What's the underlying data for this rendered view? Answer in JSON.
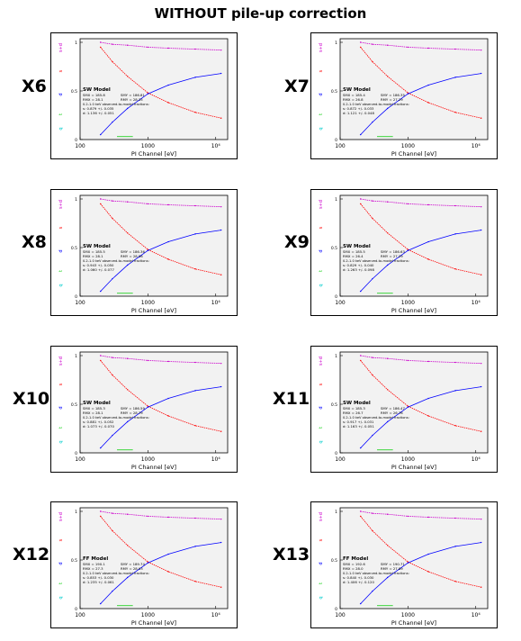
{
  "page_title": "WITHOUT pile-up correction",
  "colors": {
    "pattern_s_plus_d": "#cc00cc",
    "pattern_s": "#ff0000",
    "pattern_d": "#0000ff",
    "pattern_t": "#00cc00",
    "pattern_q": "#00cccc"
  },
  "legend_labels": {
    "s_plus_d": "s+d",
    "s": "s",
    "d": "d",
    "t": "t",
    "q": "q"
  },
  "x_axis": {
    "label": "PI Channel [eV]",
    "ticks": [
      "100",
      "1000",
      "10⁴"
    ]
  },
  "y_axis": {
    "ticks": [
      "0",
      "0.5",
      "1"
    ]
  },
  "chart_data": [
    {
      "panel": "X6",
      "type": "line",
      "model": "SW Model",
      "stats": {
        "smx": "SMX = 185.8",
        "smy": "SMY = 186.81",
        "rmx": "RMX = 28.1",
        "rmy": "RMY = 28.35"
      },
      "fit_note": "0.2-1.0 keV observed-to-model fractions:",
      "s_frac": "s: 0.879 +/- 0.035",
      "d_frac": "d: 1.136 +/- 0.051",
      "x": [
        200,
        300,
        500,
        1000,
        2000,
        5000,
        12000
      ],
      "series": [
        {
          "name": "s+d",
          "values": [
            1.0,
            0.98,
            0.97,
            0.95,
            0.94,
            0.93,
            0.92
          ]
        },
        {
          "name": "s",
          "values": [
            0.95,
            0.8,
            0.65,
            0.48,
            0.38,
            0.28,
            0.22
          ]
        },
        {
          "name": "d",
          "values": [
            0.05,
            0.18,
            0.32,
            0.47,
            0.56,
            0.64,
            0.68
          ]
        }
      ]
    },
    {
      "panel": "X7",
      "type": "line",
      "model": "SW Model",
      "stats": {
        "smx": "SMX = 185.4",
        "smy": "SMY = 186.35",
        "rmx": "RMX = 26.8",
        "rmy": "RMY = 27.29"
      },
      "fit_note": "0.2-1.0 keV observed-to-model fractions:",
      "s_frac": "s: 0.872 +/- 0.033",
      "d_frac": "d: 1.121 +/- 0.048",
      "x": [
        200,
        300,
        500,
        1000,
        2000,
        5000,
        12000
      ],
      "series": [
        {
          "name": "s+d",
          "values": [
            1.0,
            0.98,
            0.97,
            0.95,
            0.94,
            0.93,
            0.92
          ]
        },
        {
          "name": "s",
          "values": [
            0.95,
            0.8,
            0.65,
            0.48,
            0.38,
            0.28,
            0.22
          ]
        },
        {
          "name": "d",
          "values": [
            0.05,
            0.18,
            0.32,
            0.47,
            0.56,
            0.64,
            0.68
          ]
        }
      ]
    },
    {
      "panel": "X8",
      "type": "line",
      "model": "SW Model",
      "stats": {
        "smx": "SMX = 185.5",
        "smy": "SMY = 186.36",
        "rmx": "RMX = 28.1",
        "rmy": "RMY = 28.56"
      },
      "fit_note": "0.2-1.0 keV observed-to-model fractions:",
      "s_frac": "s: 0.943 +/- 0.050",
      "d_frac": "d: 1.060 +/- 0.077",
      "x": [
        200,
        300,
        500,
        1000,
        2000,
        5000,
        12000
      ],
      "series": [
        {
          "name": "s+d",
          "values": [
            1.0,
            0.98,
            0.97,
            0.95,
            0.94,
            0.93,
            0.92
          ]
        },
        {
          "name": "s",
          "values": [
            0.95,
            0.8,
            0.65,
            0.48,
            0.38,
            0.28,
            0.22
          ]
        },
        {
          "name": "d",
          "values": [
            0.05,
            0.18,
            0.32,
            0.47,
            0.56,
            0.64,
            0.68
          ]
        }
      ]
    },
    {
      "panel": "X9",
      "type": "line",
      "model": "SW Model",
      "stats": {
        "smx": "SMX = 185.5",
        "smy": "SMY = 186.63",
        "rmx": "RMX = 26.4",
        "rmy": "RMY = 27.29"
      },
      "fit_note": "0.2-1.0 keV observed-to-model fractions:",
      "s_frac": "s: 0.829 +/- 0.040",
      "d_frac": "d: 1.263 +/- 0.098",
      "x": [
        200,
        300,
        500,
        1000,
        2000,
        5000,
        12000
      ],
      "series": [
        {
          "name": "s+d",
          "values": [
            1.0,
            0.98,
            0.97,
            0.95,
            0.94,
            0.93,
            0.92
          ]
        },
        {
          "name": "s",
          "values": [
            0.95,
            0.8,
            0.65,
            0.48,
            0.38,
            0.28,
            0.22
          ]
        },
        {
          "name": "d",
          "values": [
            0.05,
            0.18,
            0.32,
            0.47,
            0.56,
            0.64,
            0.68
          ]
        }
      ]
    },
    {
      "panel": "X10",
      "type": "line",
      "model": "SW Model",
      "stats": {
        "smx": "SMX = 185.3",
        "smy": "SMY = 186.59",
        "rmx": "RMX = 28.1",
        "rmy": "RMY = 28.79"
      },
      "fit_note": "0.2-1.0 keV observed-to-model fractions:",
      "s_frac": "s: 0.881 +/- 0.052",
      "d_frac": "d: 1.073 +/- 0.070",
      "x": [
        200,
        300,
        500,
        1000,
        2000,
        5000,
        12000
      ],
      "series": [
        {
          "name": "s+d",
          "values": [
            1.0,
            0.98,
            0.97,
            0.95,
            0.94,
            0.93,
            0.92
          ]
        },
        {
          "name": "s",
          "values": [
            0.95,
            0.8,
            0.65,
            0.48,
            0.38,
            0.28,
            0.22
          ]
        },
        {
          "name": "d",
          "values": [
            0.05,
            0.18,
            0.32,
            0.47,
            0.56,
            0.64,
            0.68
          ]
        }
      ]
    },
    {
      "panel": "X11",
      "type": "line",
      "model": "SW Model",
      "stats": {
        "smx": "SMX = 185.3",
        "smy": "SMY = 186.47",
        "rmx": "RMX = 26.7",
        "rmy": "RMY = 26.76"
      },
      "fit_note": "0.2-1.0 keV observed-to-model fractions:",
      "s_frac": "s: 0.917 +/- 0.031",
      "d_frac": "d: 1.163 +/- 0.051",
      "x": [
        200,
        300,
        500,
        1000,
        2000,
        5000,
        12000
      ],
      "series": [
        {
          "name": "s+d",
          "values": [
            1.0,
            0.98,
            0.97,
            0.95,
            0.94,
            0.93,
            0.92
          ]
        },
        {
          "name": "s",
          "values": [
            0.95,
            0.8,
            0.65,
            0.48,
            0.38,
            0.28,
            0.22
          ]
        },
        {
          "name": "d",
          "values": [
            0.05,
            0.18,
            0.32,
            0.47,
            0.56,
            0.64,
            0.68
          ]
        }
      ]
    },
    {
      "panel": "X12",
      "type": "line",
      "model": "FF Model",
      "stats": {
        "smx": "SMX = 190.1",
        "smy": "SMY = 189.74",
        "rmx": "RMX = 27.3",
        "rmy": "RMY = 28.93"
      },
      "fit_note": "0.2-1.0 keV observed-to-model fractions:",
      "s_frac": "s: 0.853 +/- 0.030",
      "d_frac": "d: 1.235 +/- 0.061",
      "x": [
        200,
        300,
        500,
        1000,
        2000,
        5000,
        12000
      ],
      "series": [
        {
          "name": "s+d",
          "values": [
            1.0,
            0.98,
            0.97,
            0.95,
            0.94,
            0.93,
            0.92
          ]
        },
        {
          "name": "s",
          "values": [
            0.95,
            0.8,
            0.65,
            0.48,
            0.38,
            0.28,
            0.22
          ]
        },
        {
          "name": "d",
          "values": [
            0.05,
            0.18,
            0.32,
            0.47,
            0.56,
            0.64,
            0.68
          ]
        }
      ]
    },
    {
      "panel": "X13",
      "type": "line",
      "model": "FF Model",
      "stats": {
        "smx": "SMX = 192.6",
        "smy": "SMY = 190.71",
        "rmx": "RMX = 28.0",
        "rmy": "RMY = 27.89"
      },
      "fit_note": "0.2-1.0 keV observed-to-model fractions:",
      "s_frac": "s: 0.840 +/- 0.030",
      "d_frac": "d: 1.406 +/- 0.120",
      "x": [
        200,
        300,
        500,
        1000,
        2000,
        5000,
        12000
      ],
      "series": [
        {
          "name": "s+d",
          "values": [
            1.0,
            0.98,
            0.97,
            0.95,
            0.94,
            0.93,
            0.92
          ]
        },
        {
          "name": "s",
          "values": [
            0.95,
            0.8,
            0.65,
            0.48,
            0.38,
            0.28,
            0.22
          ]
        },
        {
          "name": "d",
          "values": [
            0.05,
            0.18,
            0.32,
            0.47,
            0.56,
            0.64,
            0.68
          ]
        }
      ]
    }
  ]
}
